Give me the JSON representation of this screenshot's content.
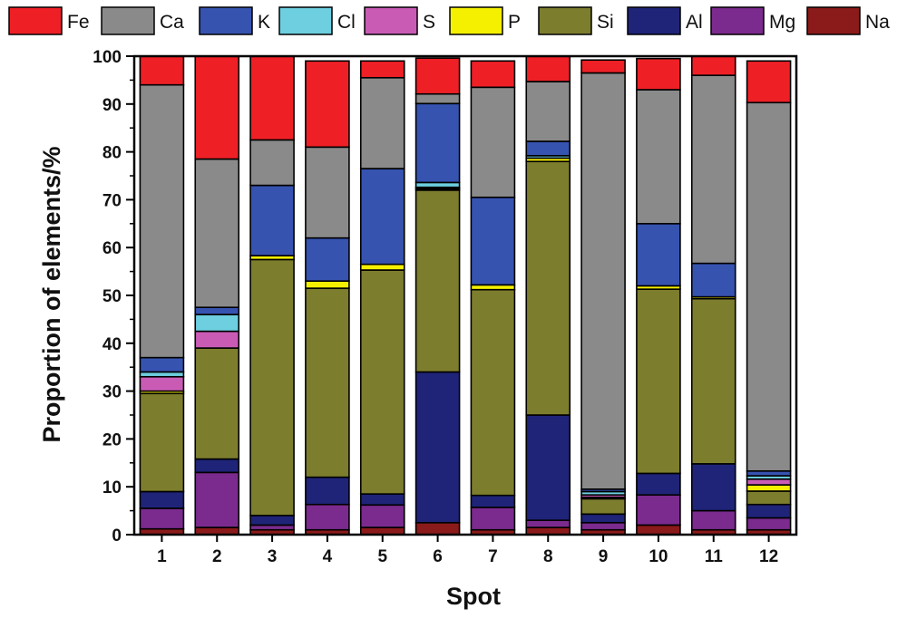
{
  "chart_data": {
    "type": "bar",
    "stacked": true,
    "title": "",
    "xlabel": "Spot",
    "ylabel": "Proportion of elements/%",
    "ylim": [
      0,
      100
    ],
    "yticks": [
      0,
      10,
      20,
      30,
      40,
      50,
      60,
      70,
      80,
      90,
      100
    ],
    "categories": [
      "1",
      "2",
      "3",
      "4",
      "5",
      "6",
      "7",
      "8",
      "9",
      "10",
      "11",
      "12"
    ],
    "legend_position": "top",
    "series": [
      {
        "name": "Na",
        "color": "#8b1a1a",
        "values": [
          1.2,
          1.5,
          1.0,
          1.0,
          1.5,
          2.5,
          1.0,
          1.5,
          1.0,
          2.0,
          1.0,
          1.0
        ]
      },
      {
        "name": "Mg",
        "color": "#7b2a8e",
        "values": [
          4.3,
          11.5,
          1.0,
          5.3,
          4.7,
          0.0,
          4.7,
          1.5,
          1.5,
          6.3,
          4.0,
          2.5
        ]
      },
      {
        "name": "Al",
        "color": "#1f2478",
        "values": [
          3.5,
          2.8,
          2.0,
          5.7,
          2.3,
          31.5,
          2.5,
          22.0,
          1.8,
          4.5,
          9.8,
          2.8
        ]
      },
      {
        "name": "Si",
        "color": "#7d7d2e",
        "values": [
          20.5,
          23.2,
          53.5,
          39.5,
          46.8,
          38.0,
          43.0,
          53.0,
          3.2,
          38.5,
          34.5,
          2.8
        ]
      },
      {
        "name": "P",
        "color": "#f5f000",
        "values": [
          0.5,
          0.0,
          0.8,
          1.5,
          1.2,
          0.3,
          1.0,
          0.7,
          0.3,
          0.7,
          0.4,
          1.3
        ]
      },
      {
        "name": "S",
        "color": "#c95bb5",
        "values": [
          3.0,
          3.5,
          0.0,
          0.0,
          0.0,
          0.3,
          0.0,
          0.0,
          0.5,
          0.0,
          0.0,
          1.2
        ]
      },
      {
        "name": "Cl",
        "color": "#6dcfdf",
        "values": [
          1.0,
          3.5,
          0.0,
          0.0,
          0.0,
          1.0,
          0.0,
          0.5,
          0.7,
          0.0,
          0.0,
          0.7
        ]
      },
      {
        "name": "K",
        "color": "#3653b0",
        "values": [
          3.0,
          1.5,
          14.7,
          9.0,
          20.0,
          16.5,
          18.3,
          3.0,
          0.5,
          13.0,
          7.0,
          1.0
        ]
      },
      {
        "name": "Ca",
        "color": "#8a8a8a",
        "values": [
          57.0,
          31.0,
          9.5,
          19.0,
          19.0,
          2.0,
          23.0,
          12.5,
          87.0,
          28.0,
          39.3,
          77.0
        ]
      },
      {
        "name": "Fe",
        "color": "#ee2026",
        "values": [
          6.0,
          21.5,
          17.5,
          18.0,
          3.5,
          7.5,
          5.5,
          5.3,
          2.7,
          6.5,
          4.0,
          8.7
        ]
      }
    ],
    "legend_order": [
      "Fe",
      "Ca",
      "K",
      "Cl",
      "S",
      "P",
      "Si",
      "Al",
      "Mg",
      "Na"
    ]
  }
}
